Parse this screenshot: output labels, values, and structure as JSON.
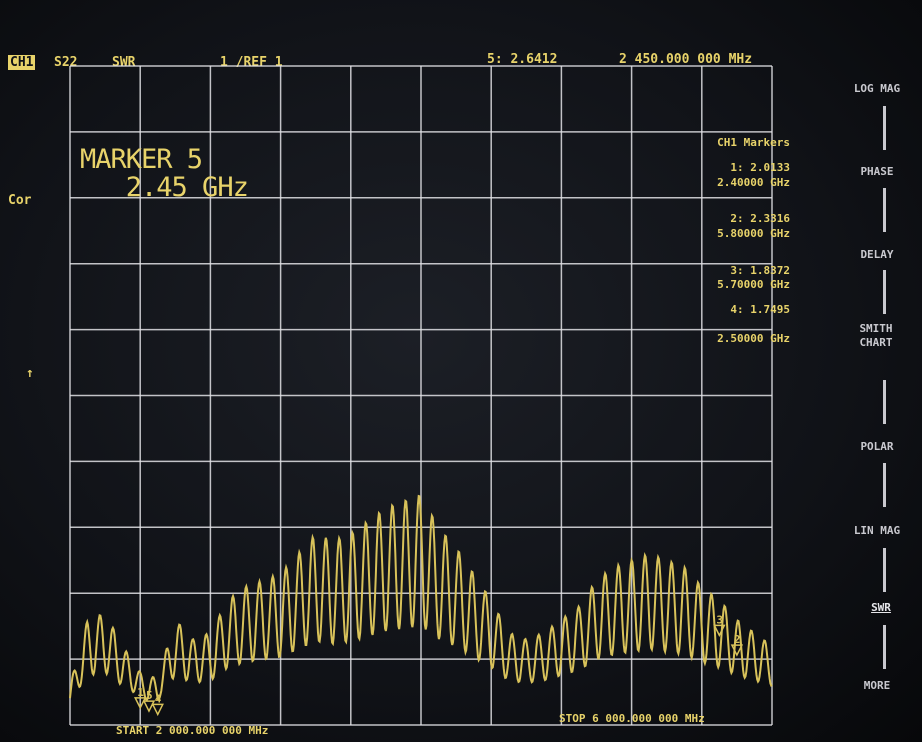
{
  "header": {
    "channel": "CH1",
    "parameter": "S22",
    "format": "SWR",
    "scale": "1 /REF 1",
    "active_marker_value": "5: 2.6412",
    "active_marker_freq": "2 450.000 000 MHz"
  },
  "left_labels": {
    "correction": "Cor",
    "ref_arrow": "↑"
  },
  "marker_display": {
    "line1": "MARKER 5",
    "line2": "2.45 GHz"
  },
  "markers_panel": {
    "title": "CH1 Markers",
    "items": [
      {
        "value": "1: 2.0133",
        "freq": "2.40000 GHz"
      },
      {
        "value": "2: 2.3316",
        "freq": "5.80000 GHz"
      },
      {
        "value": "3: 1.8372",
        "freq": "5.70000 GHz"
      },
      {
        "value": "4: 1.7495",
        "freq": "2.50000 GHz"
      }
    ]
  },
  "softkeys": [
    "LOG MAG",
    "PHASE",
    "DELAY",
    "SMITH CHART",
    "POLAR",
    "LIN MAG",
    "SWR",
    "MORE"
  ],
  "selected_softkey": "SWR",
  "footer": {
    "start": "START 2 000.000 000 MHz",
    "stop": "STOP 6 000.000 000 MHz"
  },
  "chart_data": {
    "type": "line",
    "xlabel": "",
    "ylabel": "",
    "x_unit": "GHz",
    "xlim": [
      2.0,
      6.0
    ],
    "ylim": [
      1,
      11
    ],
    "grid": true,
    "trace_color": "#d8c25a",
    "grid_color": "#e2e2e6",
    "series": [
      {
        "x": [
          2.0,
          2.1,
          2.2,
          2.3,
          2.4,
          2.5,
          2.6,
          2.7,
          2.8,
          2.9,
          3.0,
          3.1,
          3.2,
          3.3,
          3.4,
          3.5,
          3.6,
          3.7,
          3.8,
          3.9,
          4.0,
          4.1,
          4.2,
          4.3,
          4.4,
          4.5,
          4.6,
          4.7,
          4.8,
          4.9,
          5.0,
          5.1,
          5.2,
          5.3,
          5.4,
          5.5,
          5.6,
          5.7,
          5.8,
          5.9,
          6.0
        ],
        "y": [
          1.6,
          2.6,
          2.7,
          2.2,
          1.8,
          1.7,
          2.6,
          2.3,
          2.4,
          2.9,
          3.1,
          3.2,
          3.3,
          3.6,
          3.9,
          3.8,
          3.9,
          4.1,
          4.3,
          4.4,
          4.5,
          4.0,
          3.7,
          3.3,
          2.9,
          2.4,
          2.3,
          2.4,
          2.6,
          2.8,
          3.2,
          3.4,
          3.5,
          3.6,
          3.5,
          3.4,
          3.1,
          2.9,
          2.6,
          2.4,
          2.2
        ]
      }
    ],
    "markers": [
      {
        "id": "1",
        "x": 2.4
      },
      {
        "id": "5",
        "x": 2.45
      },
      {
        "id": "4",
        "x": 2.5
      },
      {
        "id": "3",
        "x": 5.7
      },
      {
        "id": "2",
        "x": 5.8
      }
    ]
  }
}
